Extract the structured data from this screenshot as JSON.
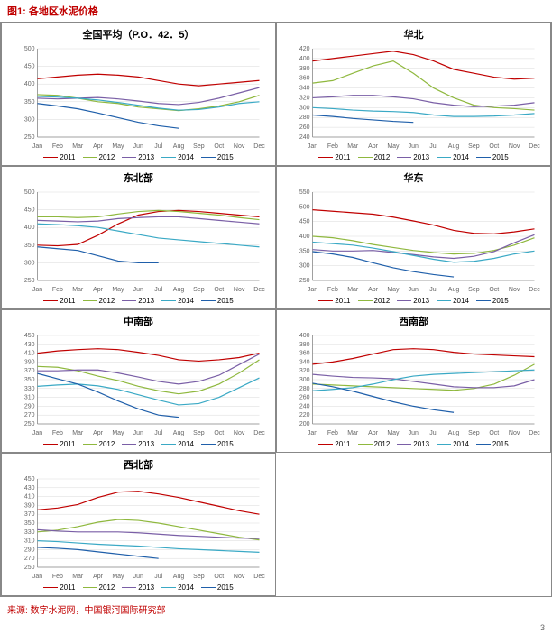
{
  "figure_title": "图1: 各地区水泥价格",
  "source": "来源: 数字水泥网，中国银河国际研究部",
  "page_number": "3",
  "months": [
    "Jan",
    "Feb",
    "Mar",
    "Apr",
    "May",
    "Jun",
    "Jul",
    "Aug",
    "Sep",
    "Oct",
    "Nov",
    "Dec"
  ],
  "legend_years": [
    "2011",
    "2012",
    "2013",
    "2014",
    "2015"
  ],
  "series_colors": {
    "2011": "#c00000",
    "2012": "#8fb83e",
    "2013": "#7a5fa6",
    "2014": "#3aa9c5",
    "2015": "#1f5faa"
  },
  "style": {
    "line_width": 1.2,
    "grid_color": "#d9d9d9",
    "axis_color": "#888888",
    "background_color": "#ffffff",
    "title_fontsize": 11,
    "label_fontsize": 7,
    "legend_fontsize": 8,
    "font_family": "SimSun"
  },
  "panels": [
    {
      "title": "全国平均（P.O．42．5）",
      "ylim": [
        250,
        500
      ],
      "ytick_step": 50,
      "series": {
        "2011": [
          415,
          420,
          425,
          428,
          425,
          420,
          410,
          400,
          395,
          400,
          405,
          410
        ],
        "2012": [
          370,
          368,
          360,
          350,
          345,
          335,
          330,
          325,
          330,
          338,
          350,
          368
        ],
        "2013": [
          360,
          358,
          360,
          362,
          358,
          352,
          345,
          342,
          348,
          360,
          375,
          390
        ],
        "2014": [
          365,
          363,
          360,
          355,
          348,
          340,
          332,
          326,
          328,
          335,
          345,
          350
        ],
        "2015": [
          345,
          338,
          330,
          318,
          305,
          292,
          282,
          275,
          null,
          null,
          null,
          null
        ]
      }
    },
    {
      "title": "华北",
      "ylim": [
        240,
        420
      ],
      "ytick_step": 20,
      "series": {
        "2011": [
          395,
          400,
          405,
          410,
          415,
          408,
          395,
          378,
          370,
          362,
          358,
          360
        ],
        "2012": [
          350,
          355,
          370,
          385,
          395,
          370,
          340,
          320,
          305,
          300,
          298,
          295
        ],
        "2013": [
          320,
          322,
          325,
          325,
          322,
          318,
          310,
          305,
          302,
          303,
          305,
          310
        ],
        "2014": [
          300,
          298,
          295,
          293,
          292,
          290,
          285,
          282,
          282,
          283,
          285,
          288
        ],
        "2015": [
          285,
          282,
          278,
          275,
          272,
          270,
          null,
          null,
          null,
          null,
          null,
          null
        ]
      }
    },
    {
      "title": "东北部",
      "ylim": [
        250,
        500
      ],
      "ytick_step": 50,
      "series": {
        "2011": [
          350,
          348,
          352,
          378,
          410,
          435,
          445,
          448,
          445,
          440,
          435,
          430
        ],
        "2012": [
          430,
          430,
          428,
          430,
          438,
          445,
          448,
          445,
          440,
          435,
          428,
          422
        ],
        "2013": [
          420,
          418,
          416,
          418,
          425,
          428,
          430,
          430,
          425,
          420,
          415,
          410
        ],
        "2014": [
          410,
          408,
          405,
          400,
          390,
          380,
          370,
          365,
          360,
          355,
          350,
          345
        ],
        "2015": [
          345,
          340,
          335,
          320,
          305,
          300,
          300,
          null,
          null,
          null,
          null,
          null
        ]
      }
    },
    {
      "title": "华东",
      "ylim": [
        250,
        550
      ],
      "ytick_step": 50,
      "series": {
        "2011": [
          490,
          485,
          480,
          475,
          465,
          452,
          438,
          420,
          410,
          408,
          415,
          425
        ],
        "2012": [
          400,
          395,
          385,
          372,
          362,
          352,
          345,
          340,
          342,
          352,
          370,
          395
        ],
        "2013": [
          355,
          350,
          350,
          352,
          345,
          338,
          330,
          325,
          332,
          348,
          378,
          405
        ],
        "2014": [
          380,
          375,
          370,
          360,
          348,
          335,
          322,
          312,
          315,
          325,
          340,
          350
        ],
        "2015": [
          348,
          340,
          328,
          310,
          293,
          280,
          270,
          262,
          null,
          null,
          null,
          null
        ]
      }
    },
    {
      "title": "中南部",
      "ylim": [
        250,
        450
      ],
      "ytick_step": 20,
      "series": {
        "2011": [
          410,
          415,
          418,
          420,
          418,
          412,
          405,
          395,
          392,
          395,
          400,
          410
        ],
        "2012": [
          380,
          378,
          370,
          358,
          348,
          335,
          325,
          318,
          324,
          340,
          365,
          395
        ],
        "2013": [
          370,
          370,
          372,
          372,
          365,
          356,
          346,
          340,
          346,
          360,
          384,
          408
        ],
        "2014": [
          335,
          338,
          340,
          336,
          328,
          316,
          304,
          293,
          296,
          310,
          332,
          354
        ],
        "2015": [
          364,
          352,
          340,
          322,
          302,
          284,
          270,
          265,
          null,
          null,
          null,
          null
        ]
      }
    },
    {
      "title": "西南部",
      "ylim": [
        200,
        400
      ],
      "ytick_step": 20,
      "series": {
        "2011": [
          335,
          340,
          348,
          358,
          368,
          370,
          368,
          362,
          358,
          356,
          354,
          352
        ],
        "2012": [
          290,
          288,
          286,
          284,
          282,
          280,
          278,
          276,
          280,
          290,
          310,
          335
        ],
        "2013": [
          312,
          308,
          305,
          304,
          302,
          296,
          290,
          284,
          282,
          282,
          286,
          300
        ],
        "2014": [
          275,
          278,
          282,
          290,
          300,
          308,
          312,
          314,
          316,
          318,
          320,
          322
        ],
        "2015": [
          292,
          284,
          274,
          262,
          250,
          240,
          232,
          226,
          null,
          null,
          null,
          null
        ]
      }
    },
    {
      "title": "西北部",
      "ylim": [
        250,
        450
      ],
      "ytick_step": 20,
      "series": {
        "2011": [
          380,
          384,
          392,
          408,
          420,
          422,
          416,
          408,
          398,
          388,
          378,
          370
        ],
        "2012": [
          330,
          334,
          342,
          352,
          358,
          356,
          350,
          342,
          334,
          326,
          318,
          312
        ],
        "2013": [
          335,
          332,
          330,
          330,
          330,
          328,
          325,
          322,
          320,
          318,
          316,
          315
        ],
        "2014": [
          310,
          308,
          305,
          302,
          300,
          298,
          295,
          292,
          290,
          288,
          286,
          284
        ],
        "2015": [
          295,
          293,
          290,
          285,
          280,
          275,
          270,
          null,
          null,
          null,
          null,
          null
        ]
      }
    }
  ]
}
